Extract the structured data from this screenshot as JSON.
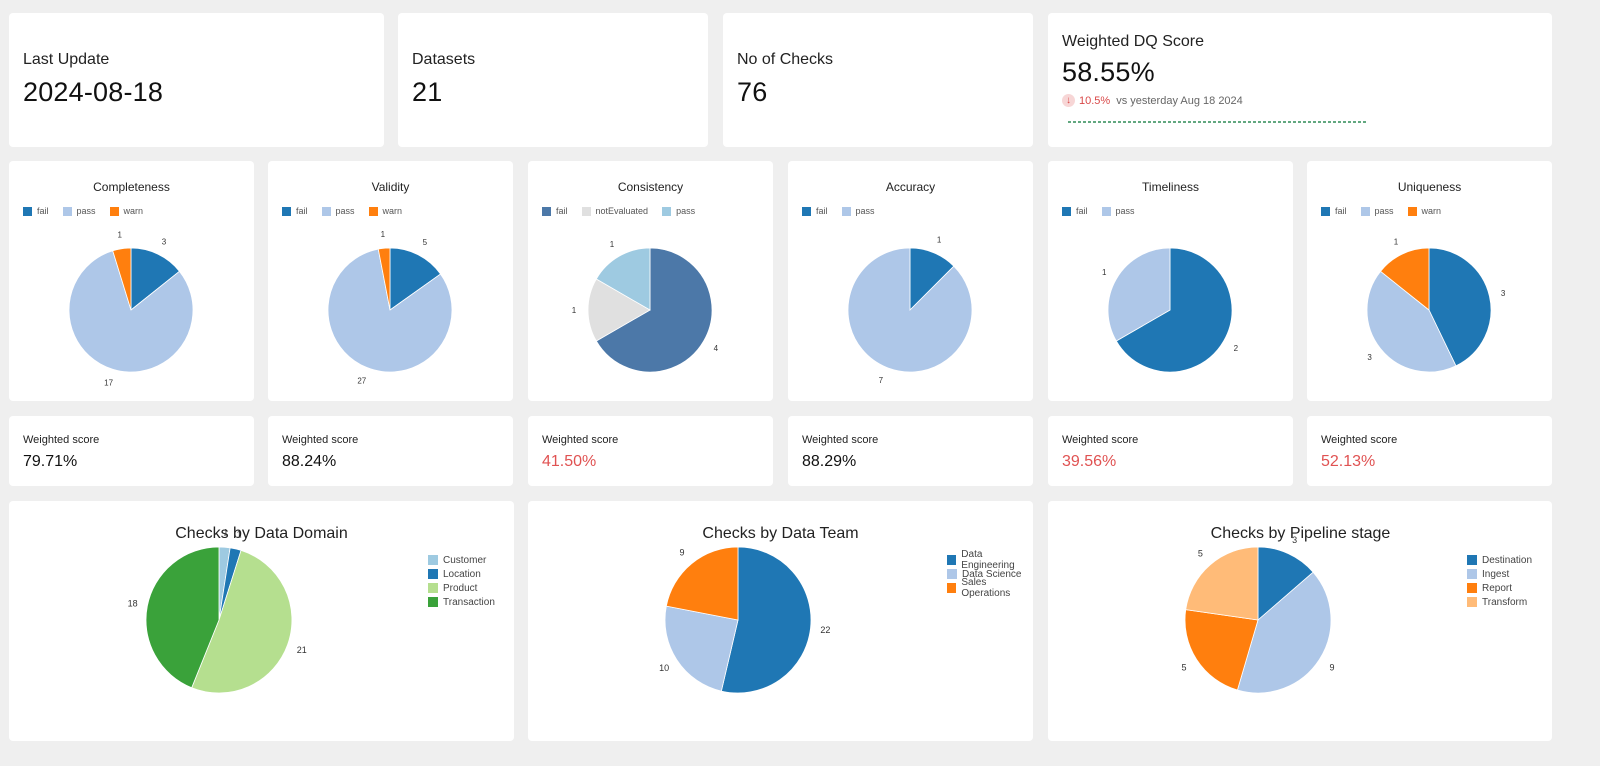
{
  "kpis": {
    "last_update": {
      "label": "Last Update",
      "value": "2024-08-18"
    },
    "datasets": {
      "label": "Datasets",
      "value": "21"
    },
    "checks": {
      "label": "No of Checks",
      "value": "76"
    },
    "dq_score": {
      "label": "Weighted DQ Score",
      "value": "58.55%",
      "delta": "10.5%",
      "delta_text": "vs yesterday Aug 18 2024",
      "delta_icon": "down-arrow-icon"
    }
  },
  "colors": {
    "fail": "#1f77b4",
    "pass": "#aec7e8",
    "warn": "#ff7f0e",
    "consistency_fail": "#4c78a8",
    "not_evaluated": "#e0e0e0",
    "red_score": "#e05252",
    "sparkline": "#2e8b57"
  },
  "scores": [
    {
      "label": "Weighted score",
      "value": "79.71%",
      "status": "ok"
    },
    {
      "label": "Weighted score",
      "value": "88.24%",
      "status": "ok"
    },
    {
      "label": "Weighted score",
      "value": "41.50%",
      "status": "low"
    },
    {
      "label": "Weighted score",
      "value": "88.29%",
      "status": "ok"
    },
    {
      "label": "Weighted score",
      "value": "39.56%",
      "status": "low"
    },
    {
      "label": "Weighted score",
      "value": "52.13%",
      "status": "low"
    }
  ],
  "chart_data": [
    {
      "type": "pie",
      "title": "Completeness",
      "legend": [
        "fail",
        "pass",
        "warn"
      ],
      "slices": [
        {
          "name": "fail",
          "value": 3,
          "color": "#1f77b4",
          "label": "3"
        },
        {
          "name": "pass",
          "value": 17,
          "color": "#aec7e8",
          "label": "17"
        },
        {
          "name": "warn",
          "value": 1,
          "color": "#ff7f0e",
          "label": "1"
        }
      ]
    },
    {
      "type": "pie",
      "title": "Validity",
      "legend": [
        "fail",
        "pass",
        "warn"
      ],
      "slices": [
        {
          "name": "fail",
          "value": 5,
          "color": "#1f77b4",
          "label": "5"
        },
        {
          "name": "pass",
          "value": 27,
          "color": "#aec7e8",
          "label": "27"
        },
        {
          "name": "warn",
          "value": 1,
          "color": "#ff7f0e",
          "label": "1"
        }
      ]
    },
    {
      "type": "pie",
      "title": "Consistency",
      "legend": [
        "fail",
        "notEvaluated",
        "pass"
      ],
      "slices": [
        {
          "name": "fail",
          "value": 4,
          "color": "#4c78a8",
          "label": "4"
        },
        {
          "name": "notEvaluated",
          "value": 1,
          "color": "#e0e0e0",
          "label": "1"
        },
        {
          "name": "pass",
          "value": 1,
          "color": "#9ecae1",
          "label": "1"
        }
      ]
    },
    {
      "type": "pie",
      "title": "Accuracy",
      "legend": [
        "fail",
        "pass"
      ],
      "slices": [
        {
          "name": "fail",
          "value": 1,
          "color": "#1f77b4",
          "label": "1"
        },
        {
          "name": "pass",
          "value": 7,
          "color": "#aec7e8",
          "label": "7"
        }
      ]
    },
    {
      "type": "pie",
      "title": "Timeliness",
      "legend": [
        "fail",
        "pass"
      ],
      "slices": [
        {
          "name": "fail",
          "value": 2,
          "color": "#1f77b4",
          "label": "2"
        },
        {
          "name": "pass",
          "value": 1,
          "color": "#aec7e8",
          "label": "1"
        }
      ]
    },
    {
      "type": "pie",
      "title": "Uniqueness",
      "legend": [
        "fail",
        "pass",
        "warn"
      ],
      "slices": [
        {
          "name": "fail",
          "value": 3,
          "color": "#1f77b4",
          "label": "3"
        },
        {
          "name": "pass",
          "value": 3,
          "color": "#aec7e8",
          "label": "3"
        },
        {
          "name": "warn",
          "value": 1,
          "color": "#ff7f0e",
          "label": "1"
        }
      ]
    },
    {
      "type": "pie",
      "title": "Checks by Data Domain",
      "legend": [
        "Customer",
        "Location",
        "Product",
        "Transaction"
      ],
      "slices": [
        {
          "name": "Customer",
          "value": 1,
          "color": "#9ecae1",
          "label": "1"
        },
        {
          "name": "Location",
          "value": 1,
          "color": "#1f77b4",
          "label": "1"
        },
        {
          "name": "Product",
          "value": 21,
          "color": "#b5df8f",
          "label": "21"
        },
        {
          "name": "Transaction",
          "value": 18,
          "color": "#3aa23a",
          "label": "18"
        }
      ]
    },
    {
      "type": "pie",
      "title": "Checks by Data Team",
      "legend": [
        "Data Engineering",
        "Data Science",
        "Sales Operations"
      ],
      "slices": [
        {
          "name": "Data Engineering",
          "value": 22,
          "color": "#1f77b4",
          "label": "22"
        },
        {
          "name": "Data Science",
          "value": 10,
          "color": "#aec7e8",
          "label": "10"
        },
        {
          "name": "Sales Operations",
          "value": 9,
          "color": "#ff7f0e",
          "label": "9"
        }
      ]
    },
    {
      "type": "pie",
      "title": "Checks by Pipeline stage",
      "legend": [
        "Destination",
        "Ingest",
        "Report",
        "Transform"
      ],
      "slices": [
        {
          "name": "Destination",
          "value": 3,
          "color": "#1f77b4",
          "label": "3"
        },
        {
          "name": "Ingest",
          "value": 9,
          "color": "#aec7e8",
          "label": "9"
        },
        {
          "name": "Report",
          "value": 5,
          "color": "#ff7f0e",
          "label": "5"
        },
        {
          "name": "Transform",
          "value": 5,
          "color": "#ffbb78",
          "label": "5"
        }
      ]
    }
  ]
}
